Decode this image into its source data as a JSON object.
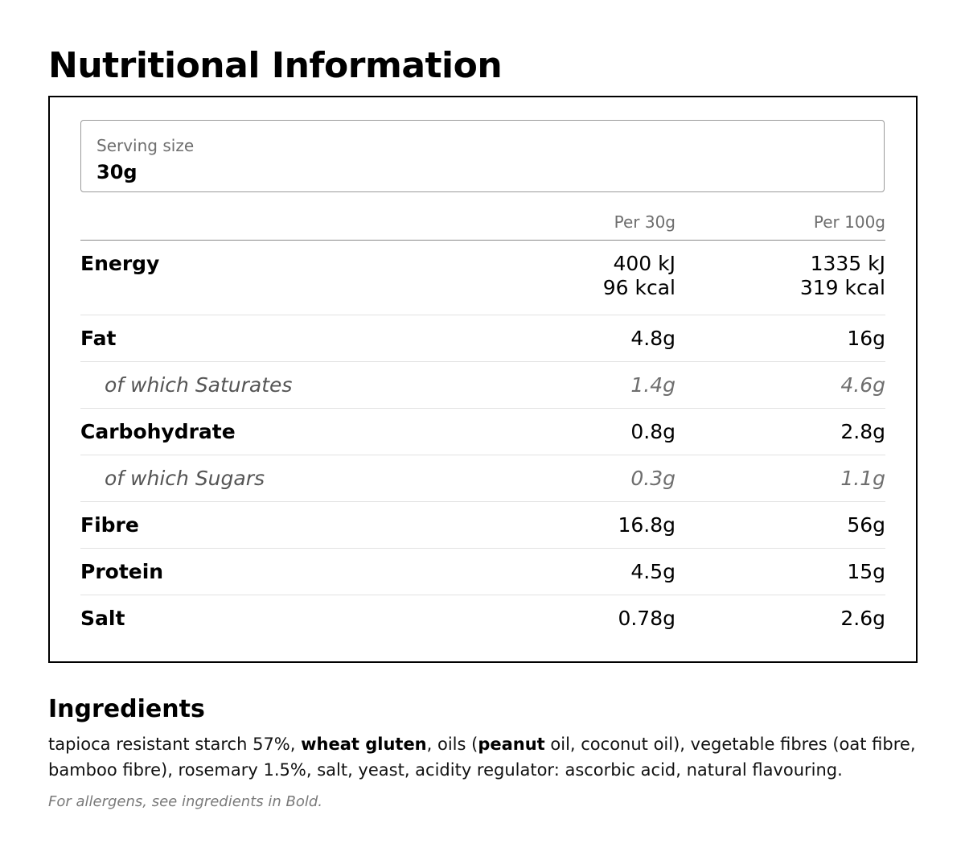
{
  "title": "Nutritional Information",
  "serving": {
    "label": "Serving size",
    "value": "30g"
  },
  "columns": {
    "per_serving": "Per 30g",
    "per_100g": "Per 100g"
  },
  "rows": [
    {
      "label": "Energy",
      "per_serving": "400 kJ",
      "per_serving_line2": "96 kcal",
      "per_100g": "1335 kJ",
      "per_100g_line2": "319 kcal"
    },
    {
      "label": "Fat",
      "per_serving": "4.8g",
      "per_100g": "16g"
    },
    {
      "label": "of which Saturates",
      "per_serving": "1.4g",
      "per_100g": "4.6g"
    },
    {
      "label": "Carbohydrate",
      "per_serving": "0.8g",
      "per_100g": "2.8g"
    },
    {
      "label": "of which Sugars",
      "per_serving": "0.3g",
      "per_100g": "1.1g"
    },
    {
      "label": "Fibre",
      "per_serving": "16.8g",
      "per_100g": "56g"
    },
    {
      "label": "Protein",
      "per_serving": "4.5g",
      "per_100g": "15g"
    },
    {
      "label": "Salt",
      "per_serving": "0.78g",
      "per_100g": "2.6g"
    }
  ],
  "ingredients": {
    "heading": "Ingredients",
    "parts": [
      "tapioca resistant starch 57%, ",
      "wheat gluten",
      ", oils (",
      "peanut",
      " oil, coconut oil), vegetable fibres (oat fibre, bamboo fibre), rosemary 1.5%, salt, yeast, acidity regulator: ascorbic acid, natural flavouring."
    ],
    "note": "For allergens, see ingredients in Bold."
  }
}
